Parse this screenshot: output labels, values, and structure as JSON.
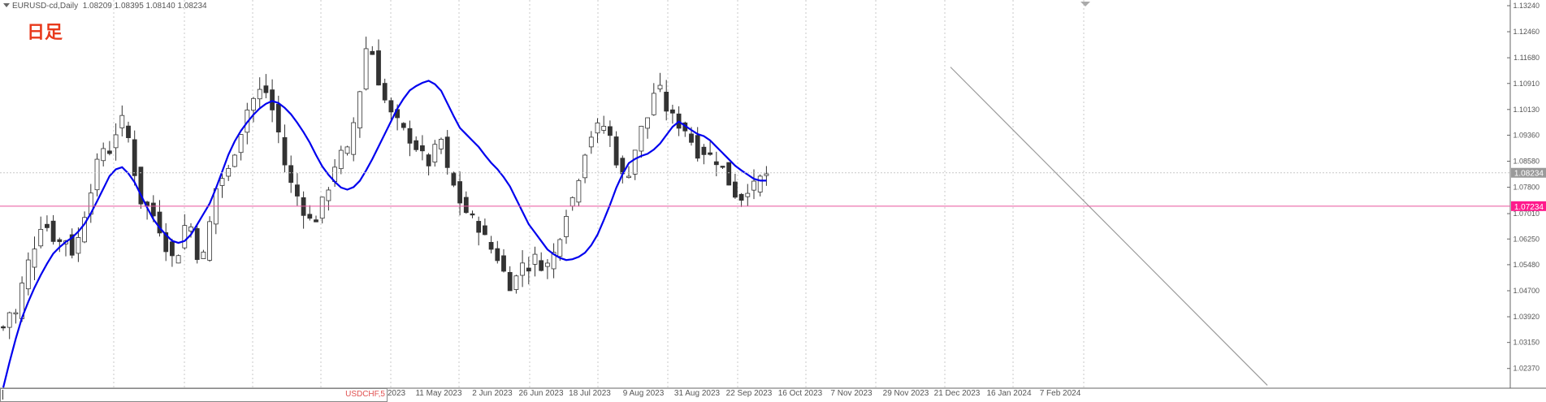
{
  "header": {
    "symbol": "EURUSD-cd,Daily",
    "ohlc": "1.08209 1.08395 1.08140 1.08234"
  },
  "timeframe_label": "日足",
  "bottom_tab": {
    "label": "USDCHF,5"
  },
  "colors": {
    "ma_line": "#0000ee",
    "candle": "#333333",
    "trendline": "#9a9a9a",
    "level_line": "#e8559c",
    "level_badge": "#ff1a8c",
    "price_badge": "#9a9a9a",
    "grid": "#c8c8c8",
    "timeframe_text": "#e8391b"
  },
  "chart_data": {
    "type": "candlestick",
    "symbol": "EURUSD-cd",
    "period": "Daily",
    "y_ticks": [
      "1.13240",
      "1.12460",
      "1.11680",
      "1.10910",
      "1.10130",
      "1.09360",
      "1.08580",
      "1.07800",
      "1.07010",
      "1.06250",
      "1.05480",
      "1.04700",
      "1.03920",
      "1.03150",
      "1.02370"
    ],
    "ylim": [
      1.0195,
      1.1324
    ],
    "x_labels": [
      "2023",
      "11 May 2023",
      "2 Jun 2023",
      "26 Jun 2023",
      "18 Jul 2023",
      "9 Aug 2023",
      "31 Aug 2023",
      "22 Sep 2023",
      "16 Oct 2023",
      "7 Nov 2023",
      "29 Nov 2023",
      "21 Dec 2023",
      "16 Jan 2024",
      "7 Feb 2024"
    ],
    "current_price": "1.08234",
    "horizontal_level": "1.07234",
    "close_path": [
      1.036,
      1.041,
      1.038,
      1.046,
      1.053,
      1.058,
      1.062,
      1.068,
      1.066,
      1.063,
      1.061,
      1.064,
      1.059,
      1.058,
      1.066,
      1.072,
      1.079,
      1.085,
      1.09,
      1.088,
      1.092,
      1.099,
      1.097,
      1.09,
      1.08,
      1.073,
      1.072,
      1.07,
      1.067,
      1.062,
      1.058,
      1.056,
      1.06,
      1.068,
      1.066,
      1.058,
      1.056,
      1.064,
      1.074,
      1.082,
      1.08,
      1.084,
      1.09,
      1.095,
      1.101,
      1.104,
      1.106,
      1.108,
      1.105,
      1.099,
      1.093,
      1.084,
      1.079,
      1.076,
      1.072,
      1.069,
      1.067,
      1.07,
      1.075,
      1.079,
      1.085,
      1.088,
      1.087,
      1.095,
      1.102,
      1.113,
      1.124,
      1.116,
      1.109,
      1.104,
      1.1,
      1.098,
      1.096,
      1.093,
      1.092,
      1.089,
      1.087,
      1.085,
      1.089,
      1.094,
      1.084,
      1.08,
      1.076,
      1.072,
      1.07,
      1.068,
      1.066,
      1.063,
      1.06,
      1.058,
      1.055,
      1.05,
      1.048,
      1.052,
      1.056,
      1.054,
      1.057,
      1.055,
      1.054,
      1.056,
      1.06,
      1.066,
      1.072,
      1.075,
      1.081,
      1.088,
      1.093,
      1.095,
      1.097,
      1.096,
      1.092,
      1.085,
      1.081,
      1.082,
      1.088,
      1.094,
      1.098,
      1.1,
      1.11,
      1.106,
      1.101,
      1.099,
      1.097,
      1.096,
      1.094,
      1.089,
      1.088,
      1.089,
      1.087,
      1.086,
      1.084,
      1.08,
      1.077,
      1.074,
      1.076,
      1.079,
      1.078,
      1.081,
      1.082
    ],
    "close_steps": 122,
    "ma_path": [
      1.018,
      1.03,
      1.04,
      1.047,
      1.053,
      1.058,
      1.061,
      1.063,
      1.066,
      1.071,
      1.077,
      1.083,
      1.084,
      1.081,
      1.075,
      1.069,
      1.065,
      1.062,
      1.061,
      1.064,
      1.069,
      1.074,
      1.082,
      1.09,
      1.095,
      1.099,
      1.102,
      1.104,
      1.103,
      1.1,
      1.096,
      1.091,
      1.085,
      1.081,
      1.078,
      1.077,
      1.08,
      1.085,
      1.091,
      1.097,
      1.103,
      1.107,
      1.109,
      1.11,
      1.108,
      1.102,
      1.096,
      1.093,
      1.09,
      1.086,
      1.083,
      1.079,
      1.073,
      1.067,
      1.063,
      1.059,
      1.057,
      1.056,
      1.057,
      1.059,
      1.064,
      1.071,
      1.079,
      1.085,
      1.087,
      1.088,
      1.09,
      1.094,
      1.098,
      1.096,
      1.094,
      1.093,
      1.09,
      1.087,
      1.084,
      1.082,
      1.08,
      1.08
    ],
    "ma_steps": 122,
    "trendline": {
      "start": [
        "21 Dec 2023",
        1.114
      ],
      "through": [
        "7 Feb 2024",
        1.081
      ],
      "extends_right": true
    },
    "grid": true
  }
}
